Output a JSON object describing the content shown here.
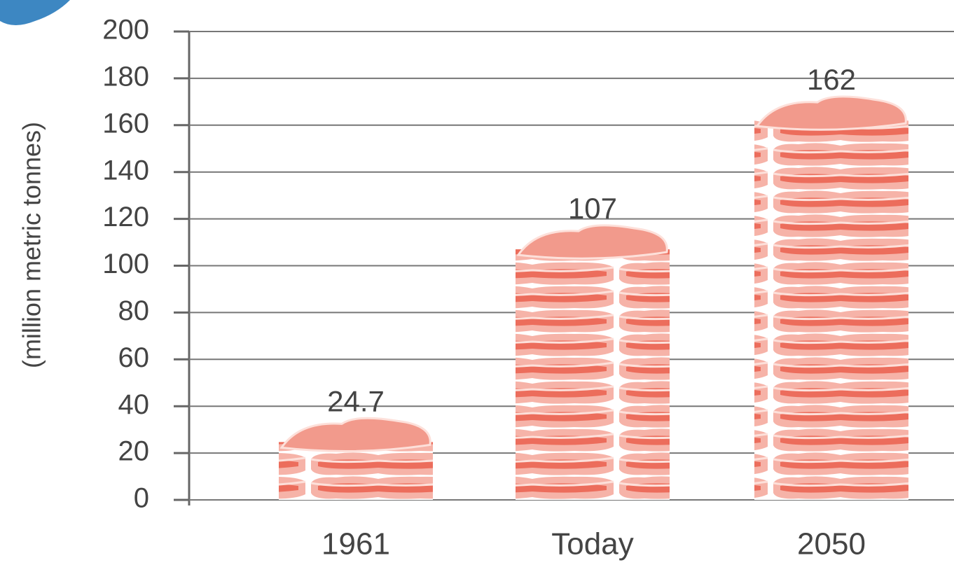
{
  "chart_data": {
    "type": "bar",
    "y_label": "(million metric tonnes)",
    "categories": [
      "1961",
      "Today",
      "2050"
    ],
    "values": [
      24.7,
      107,
      162
    ],
    "color": "#f29a8c",
    "ylim": [
      0,
      200
    ],
    "yticks": [
      0,
      20,
      40,
      60,
      80,
      100,
      120,
      140,
      160,
      180,
      200
    ],
    "grid": true
  }
}
